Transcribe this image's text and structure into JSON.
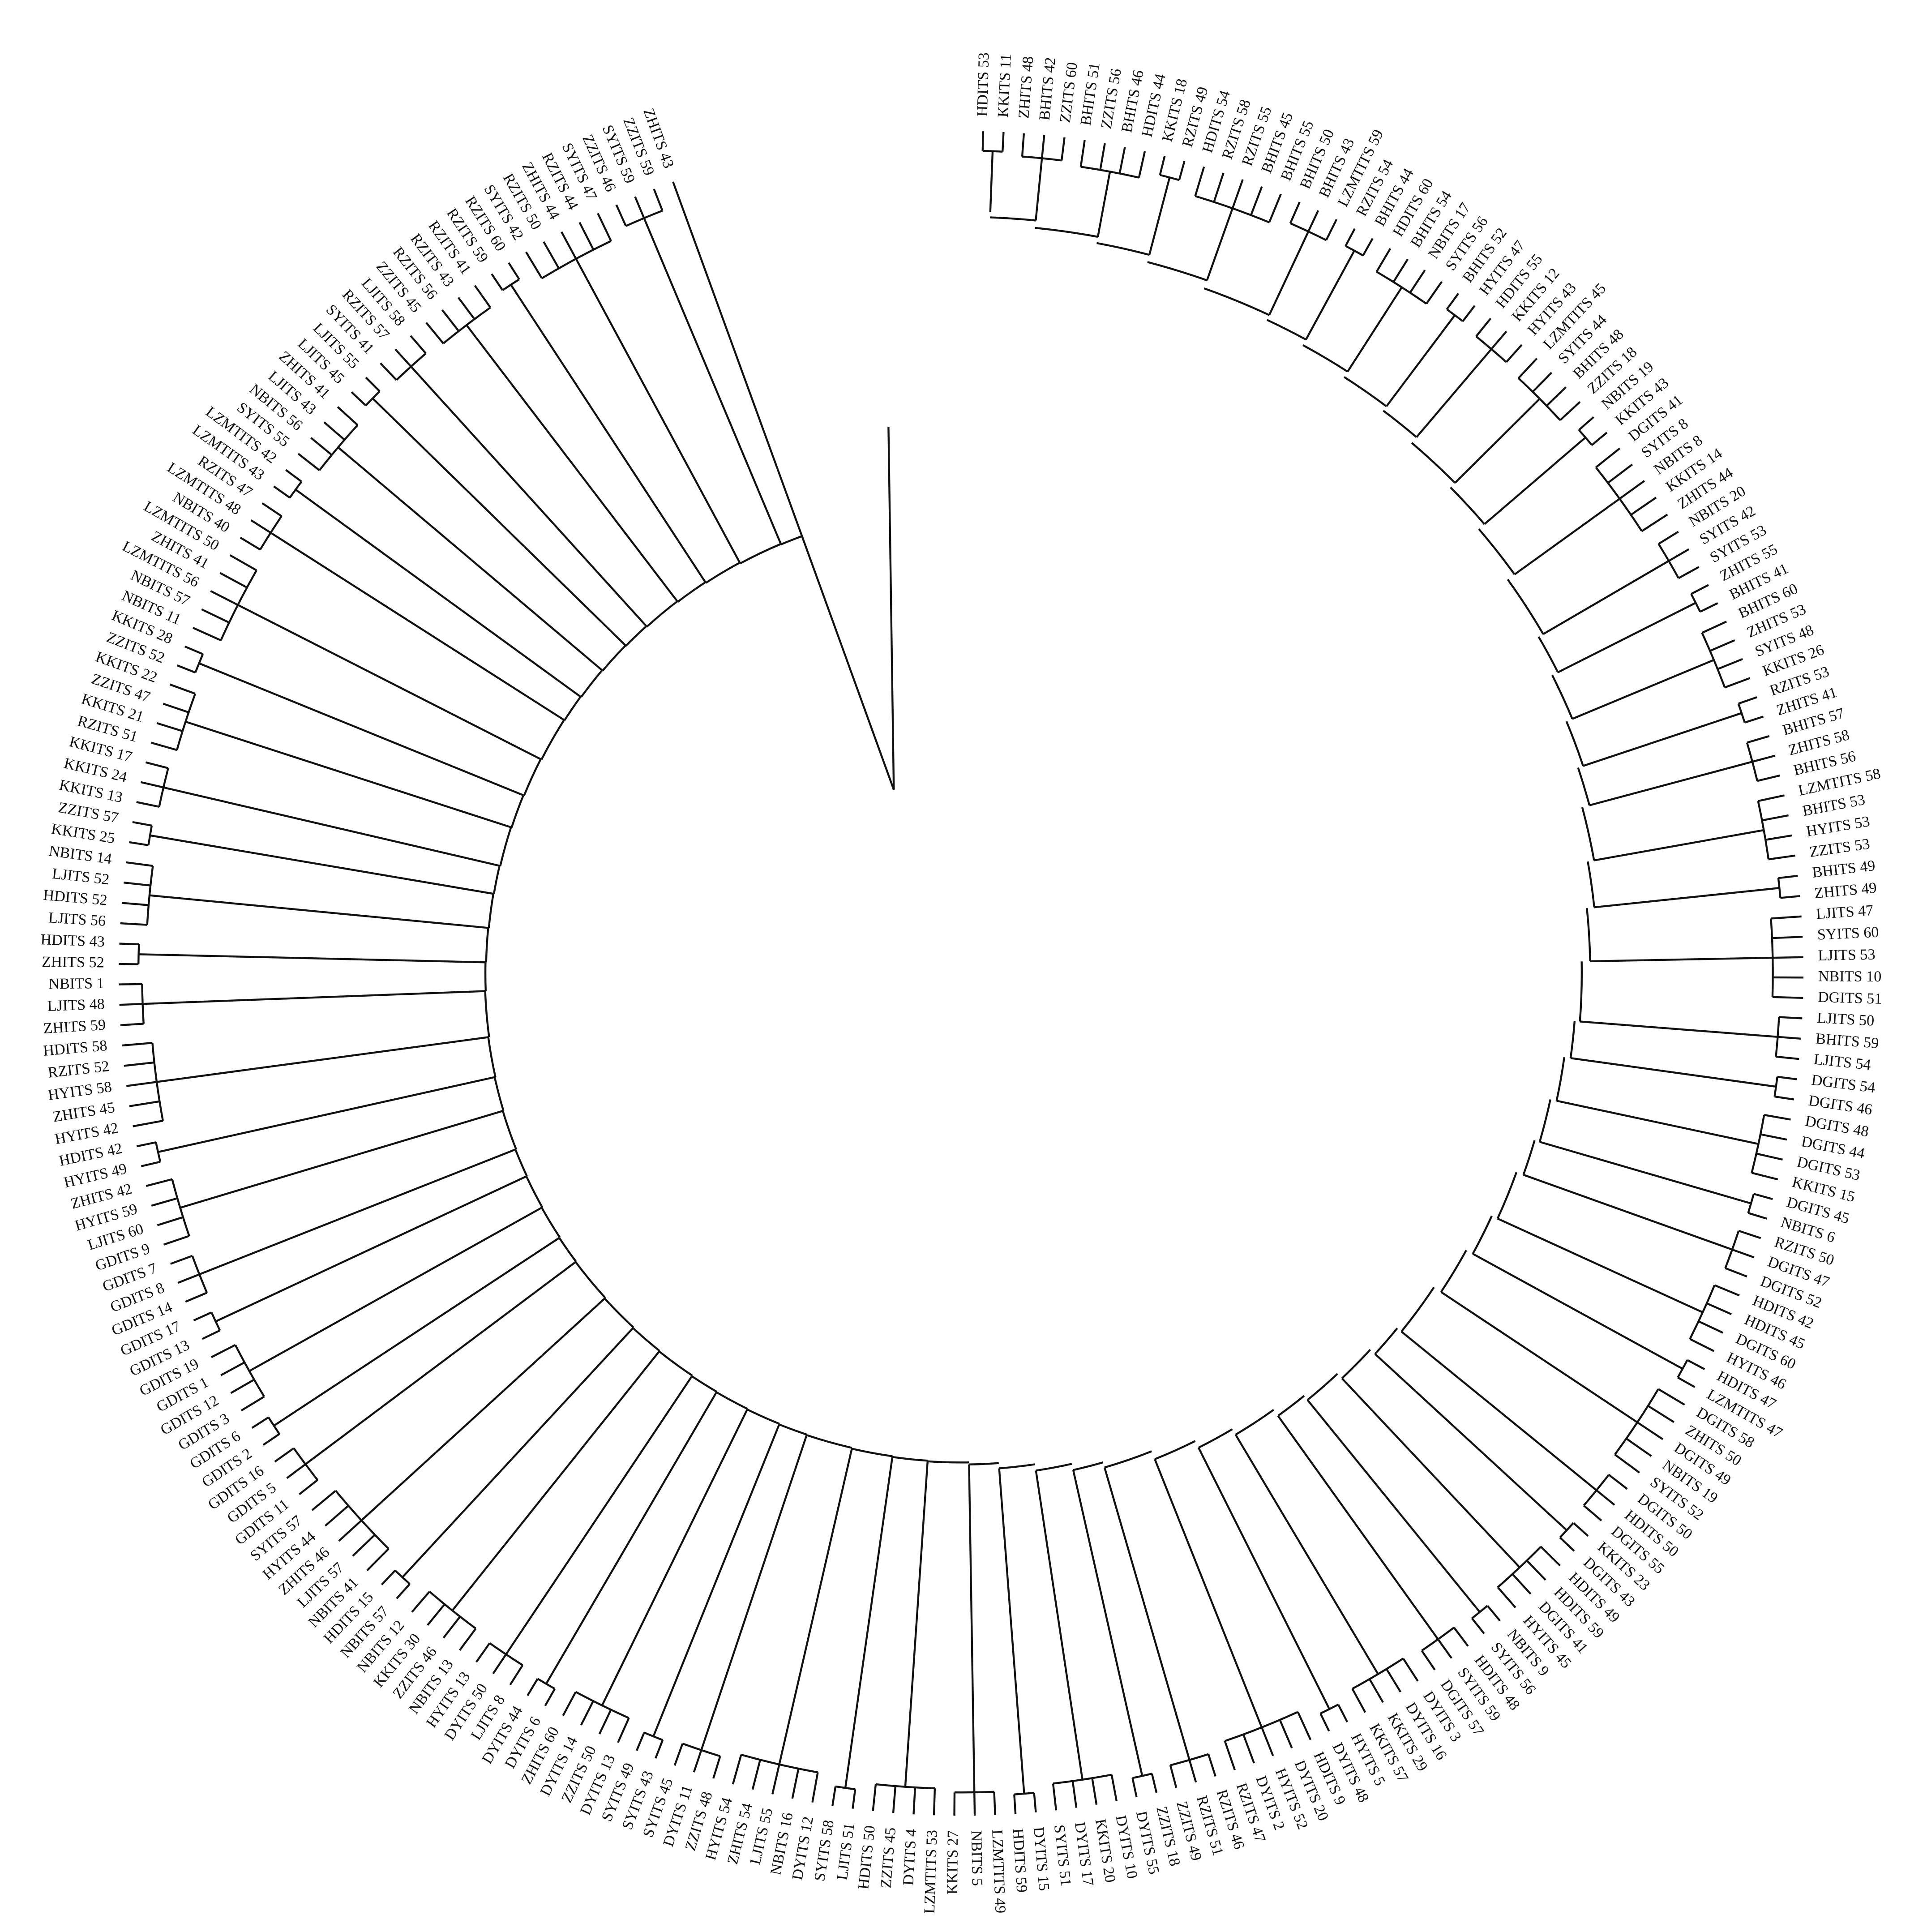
{
  "leaves": [
    "HDITS 53",
    "KKITS 11",
    "ZHITS 48",
    "BHITS 42",
    "ZZITS 60",
    "BHITS 51",
    "ZZITS 56",
    "BHITS 46",
    "HDITS 44",
    "KKITS 18",
    "RZITS 49",
    "HDITS 54",
    "RZITS 58",
    "RZITS 55",
    "BHITS 45",
    "BHITS 55",
    "BHITS 50",
    "BHITS 43",
    "LZMTITS 59",
    "RZITS 54",
    "BHITS 44",
    "HDITS 60",
    "BHITS 54",
    "NBITS 17",
    "SYITS 56",
    "BHITS 52",
    "HYITS 47",
    "HDITS 55",
    "KKITS 12",
    "HYITS 43",
    "LZMTITS 45",
    "SYITS 44",
    "BHITS 48",
    "ZZITS 18",
    "NBITS 19",
    "KKITS 43",
    "DGITS 41",
    "SYITS 8",
    "NBITS 8",
    "KKITS 14",
    "ZHITS 44",
    "NBITS 20",
    "SYITS 42",
    "SYITS 53",
    "ZHITS 55",
    "BHITS 41",
    "BHITS 60",
    "ZHITS 53",
    "SYITS 48",
    "KKITS 26",
    "RZITS 53",
    "ZHITS 41",
    "BHITS 57",
    "ZHITS 58",
    "BHITS 56",
    "LZMTITS 58",
    "BHITS 53",
    "HYITS 53",
    "ZZITS 53",
    "BHITS 49",
    "ZHITS 49",
    "LJITS 47",
    "SYITS 60",
    "LJITS 53",
    "NBITS 10",
    "DGITS 51",
    "LJITS 50",
    "BHITS 59",
    "LJITS 54",
    "DGITS 54",
    "DGITS 46",
    "DGITS 48",
    "DGITS 44",
    "DGITS 53",
    "KKITS 15",
    "DGITS 45",
    "NBITS 6",
    "RZITS 50",
    "DGITS 47",
    "DGITS 52",
    "HDITS 42",
    "HDITS 45",
    "DGITS 60",
    "HYITS 46",
    "HDITS 47",
    "LZMTITS 47",
    "DGITS 58",
    "ZHITS 50",
    "DGITS 49",
    "NBITS 19",
    "SYITS 52",
    "DGITS 50",
    "HDITS 50",
    "DGITS 55",
    "KKITS 23",
    "DGITS 43",
    "HDITS 49",
    "HDITS 59",
    "DGITS 41",
    "HYITS 45",
    "NBITS 9",
    "SYITS 56",
    "HDITS 48",
    "SYITS 59",
    "DGITS 57",
    "DYITS 3",
    "DYITS 16",
    "KKITS 29",
    "KKITS 57",
    "HYITS 5",
    "DYITS 48",
    "HDITS 9",
    "DYITS 20",
    "HYITS 52",
    "DYITS 2",
    "RZITS 47",
    "RZITS 46",
    "RZITS 51",
    "ZZITS 49",
    "ZZITS 18",
    "DYITS 55",
    "DYITS 10",
    "KKITS 20",
    "DYITS 17",
    "SYITS 51",
    "DYITS 15",
    "HDITS 59",
    "LZMTITS 49",
    "NBITS 5",
    "KKITS 27",
    "LZMTITS 53",
    "DYITS 4",
    "ZZITS 45",
    "HDITS 50",
    "LJITS 51",
    "SYITS 58",
    "DYITS 12",
    "NBITS 16",
    "LJITS 55",
    "ZHITS 54",
    "HYITS 54",
    "ZZITS 48",
    "DYITS 11",
    "SYITS 45",
    "SYITS 43",
    "SYITS 49",
    "DYITS 13",
    "ZZITS 50",
    "DYITS 14",
    "ZHITS 60",
    "DYITS 6",
    "DYITS 44",
    "LJITS 8",
    "DYITS 50",
    "HYITS 13",
    "NBITS 13",
    "ZZITS 46",
    "KKITS 30",
    "NBITS 12",
    "NBITS 57",
    "HDITS 15",
    "NBITS 41",
    "LJITS 57",
    "ZHITS 46",
    "HYITS 44",
    "SYITS 57",
    "GDITS 11",
    "GDITS 5",
    "GDITS 16",
    "GDITS 2",
    "GDITS 6",
    "GDITS 3",
    "GDITS 12",
    "GDITS 1",
    "GDITS 19",
    "GDITS 13",
    "GDITS 17",
    "GDITS 14",
    "GDITS 8",
    "GDITS 7",
    "GDITS 9",
    "LJITS 60",
    "HYITS 59",
    "ZHITS 42",
    "HYITS 49",
    "HDITS 42",
    "HYITS 42",
    "ZHITS 45",
    "HYITS 58",
    "RZITS 52",
    "HDITS 58",
    "ZHITS 59",
    "LJITS 48",
    "NBITS 1",
    "ZHITS 52",
    "HDITS 43",
    "LJITS 56",
    "HDITS 52",
    "LJITS 52",
    "NBITS 14",
    "KKITS 25",
    "ZZITS 57",
    "KKITS 13",
    "KKITS 24",
    "KKITS 17",
    "RZITS 51",
    "KKITS 21",
    "ZZITS 47",
    "KKITS 22",
    "ZZITS 52",
    "KKITS 28",
    "NBITS 11",
    "NBITS 57",
    "LZMTITS 56",
    "ZHITS 41",
    "LZMTITS 50",
    "NBITS 40",
    "LZMTITS 48",
    "RZITS 47",
    "LZMTITS 43",
    "LZMTITS 42",
    "SYITS 55",
    "NBITS 56",
    "LJITS 43",
    "ZHITS 41",
    "LJITS 45",
    "LJITS 55",
    "SYITS 41",
    "RZITS 57",
    "LJITS 58",
    "ZZITS 45",
    "RZITS 56",
    "RZITS 43",
    "RZITS 41",
    "RZITS 59",
    "RZITS 60",
    "SYITS 42",
    "RZITS 50",
    "ZHITS 44",
    "RZITS 44",
    "SYITS 47",
    "ZZITS 46",
    "SYITS 59",
    "ZZITS 59",
    "ZHITS 43"
  ]
}
